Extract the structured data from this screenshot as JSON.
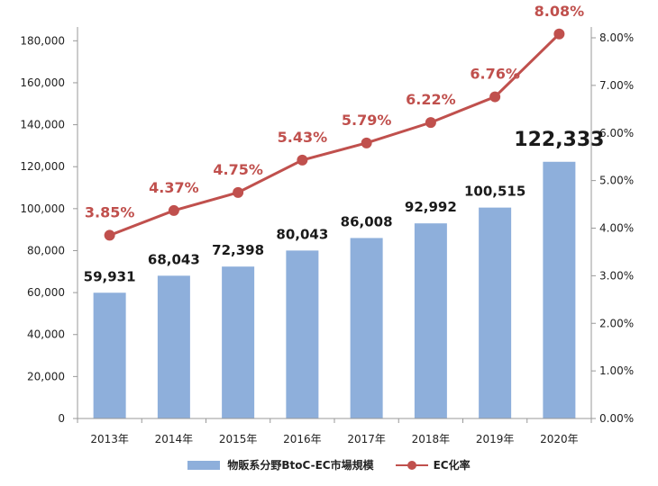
{
  "chart_data": {
    "type": "bar+line",
    "categories": [
      "2013年",
      "2014年",
      "2015年",
      "2016年",
      "2017年",
      "2018年",
      "2019年",
      "2020年"
    ],
    "series": [
      {
        "name": "物販系分野BtoC-EC市場規模",
        "type": "bar",
        "axis": "left",
        "values": [
          59931,
          68043,
          72398,
          80043,
          86008,
          92992,
          100515,
          122333
        ],
        "labels": [
          "59,931",
          "68,043",
          "72,398",
          "80,043",
          "86,008",
          "92,992",
          "100,515",
          "122,333"
        ],
        "color": "#8eafdb"
      },
      {
        "name": "EC化率",
        "type": "line",
        "axis": "right",
        "values": [
          3.85,
          4.37,
          4.75,
          5.43,
          5.79,
          6.22,
          6.76,
          8.08
        ],
        "labels": [
          "3.85%",
          "4.37%",
          "4.75%",
          "5.43%",
          "5.79%",
          "6.22%",
          "6.76%",
          "8.08%"
        ],
        "color": "#c0504d"
      }
    ],
    "left_axis": {
      "ylim": [
        0,
        190000
      ],
      "ticks": [
        0,
        20000,
        40000,
        60000,
        80000,
        100000,
        120000,
        140000,
        160000,
        180000
      ],
      "tick_labels": [
        "0",
        "20,000",
        "40,000",
        "60,000",
        "80,000",
        "100,000",
        "120,000",
        "140,000",
        "160,000",
        "180,000"
      ]
    },
    "right_axis": {
      "ylim": [
        0,
        8.0
      ],
      "ticks": [
        0,
        1,
        2,
        3,
        4,
        5,
        6,
        7,
        8
      ],
      "tick_labels": [
        "0.00%",
        "1.00%",
        "2.00%",
        "3.00%",
        "4.00%",
        "5.00%",
        "6.00%",
        "7.00%",
        "8.00%"
      ]
    },
    "legend": {
      "position": "bottom",
      "items": [
        "物販系分野BtoC-EC市場規模",
        "EC化率"
      ]
    },
    "grid": false
  }
}
